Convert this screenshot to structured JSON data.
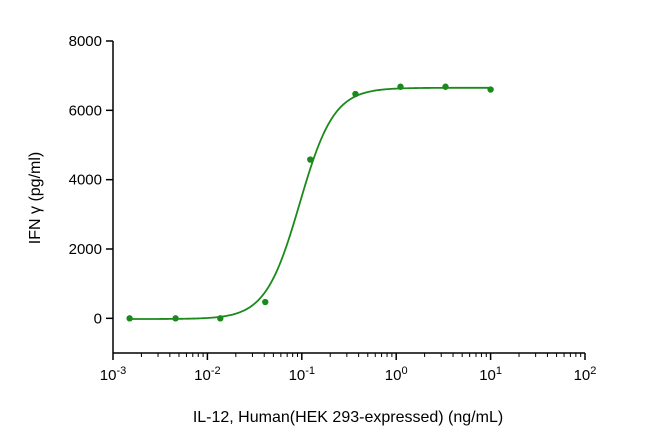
{
  "chart_data": {
    "type": "scatter",
    "xlabel": "IL-12, Human(HEK 293-expressed) (ng/mL)",
    "ylabel": "IFN γ (pg/ml)",
    "x_scale": "log",
    "xlim": [
      0.001,
      100
    ],
    "ylim": [
      -1000,
      8000
    ],
    "x_tick_labels": [
      {
        "base": "10",
        "exp": "-3"
      },
      {
        "base": "10",
        "exp": "-2"
      },
      {
        "base": "10",
        "exp": "-1"
      },
      {
        "base": "10",
        "exp": "0"
      },
      {
        "base": "10",
        "exp": "1"
      },
      {
        "base": "10",
        "exp": "2"
      }
    ],
    "x_ticks": [
      0.001,
      0.01,
      0.1,
      1,
      10,
      100
    ],
    "y_ticks": [
      0,
      2000,
      4000,
      6000,
      8000
    ],
    "y_tick_labels": [
      "0",
      "2000",
      "4000",
      "6000",
      "8000"
    ],
    "color": "#1a8a1a",
    "grid": false,
    "series": [
      {
        "x": [
          0.0015,
          0.0046,
          0.0137,
          0.041,
          0.123,
          0.37,
          1.11,
          3.33,
          10
        ],
        "y": [
          0,
          0,
          0,
          470,
          4580,
          6470,
          6680,
          6680,
          6600
        ]
      }
    ],
    "fit": {
      "bottom": -20,
      "top": 6650,
      "ec50": 0.095,
      "hill": 2.4,
      "x_range": [
        0.0015,
        10
      ]
    }
  }
}
